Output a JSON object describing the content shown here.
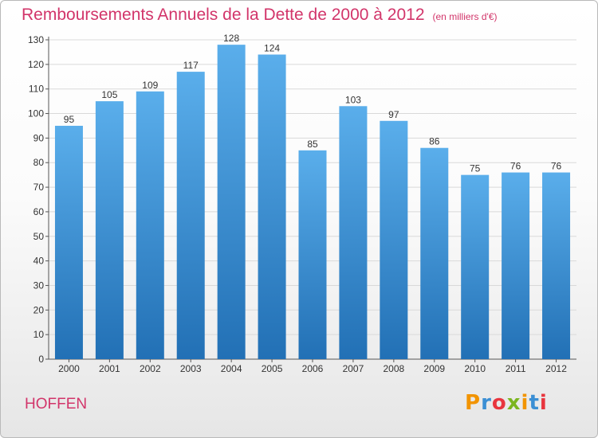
{
  "title": "Remboursements Annuels de la Dette de 2000 à 2012",
  "unit_label": "(en milliers d'€)",
  "commune": "HOFFEN",
  "logo": {
    "text": "Proxiti",
    "colors": [
      "#f29400",
      "#3b8fd4",
      "#e8353e",
      "#7cb51f"
    ]
  },
  "colors": {
    "bar_top": "#5aaeeb",
    "bar_bottom": "#2270b5",
    "grid": "#d9d9d9",
    "title": "#d2356a"
  },
  "chart_data": {
    "type": "bar",
    "categories": [
      "2000",
      "2001",
      "2002",
      "2003",
      "2004",
      "2005",
      "2006",
      "2007",
      "2008",
      "2009",
      "2010",
      "2011",
      "2012"
    ],
    "values": [
      95,
      105,
      109,
      117,
      128,
      124,
      85,
      103,
      97,
      86,
      75,
      76,
      76
    ],
    "data_labels": [
      "95",
      "105",
      "109",
      "117",
      "128",
      "124",
      "85",
      "103",
      "97",
      "86",
      "75",
      "76",
      "76"
    ],
    "title": "Remboursements Annuels de la Dette de 2000 à 2012",
    "xlabel": "",
    "ylabel": "",
    "ylim": [
      0,
      130
    ],
    "yticks": [
      0,
      10,
      20,
      30,
      40,
      50,
      60,
      70,
      80,
      90,
      100,
      110,
      120,
      130
    ],
    "grid": true
  }
}
